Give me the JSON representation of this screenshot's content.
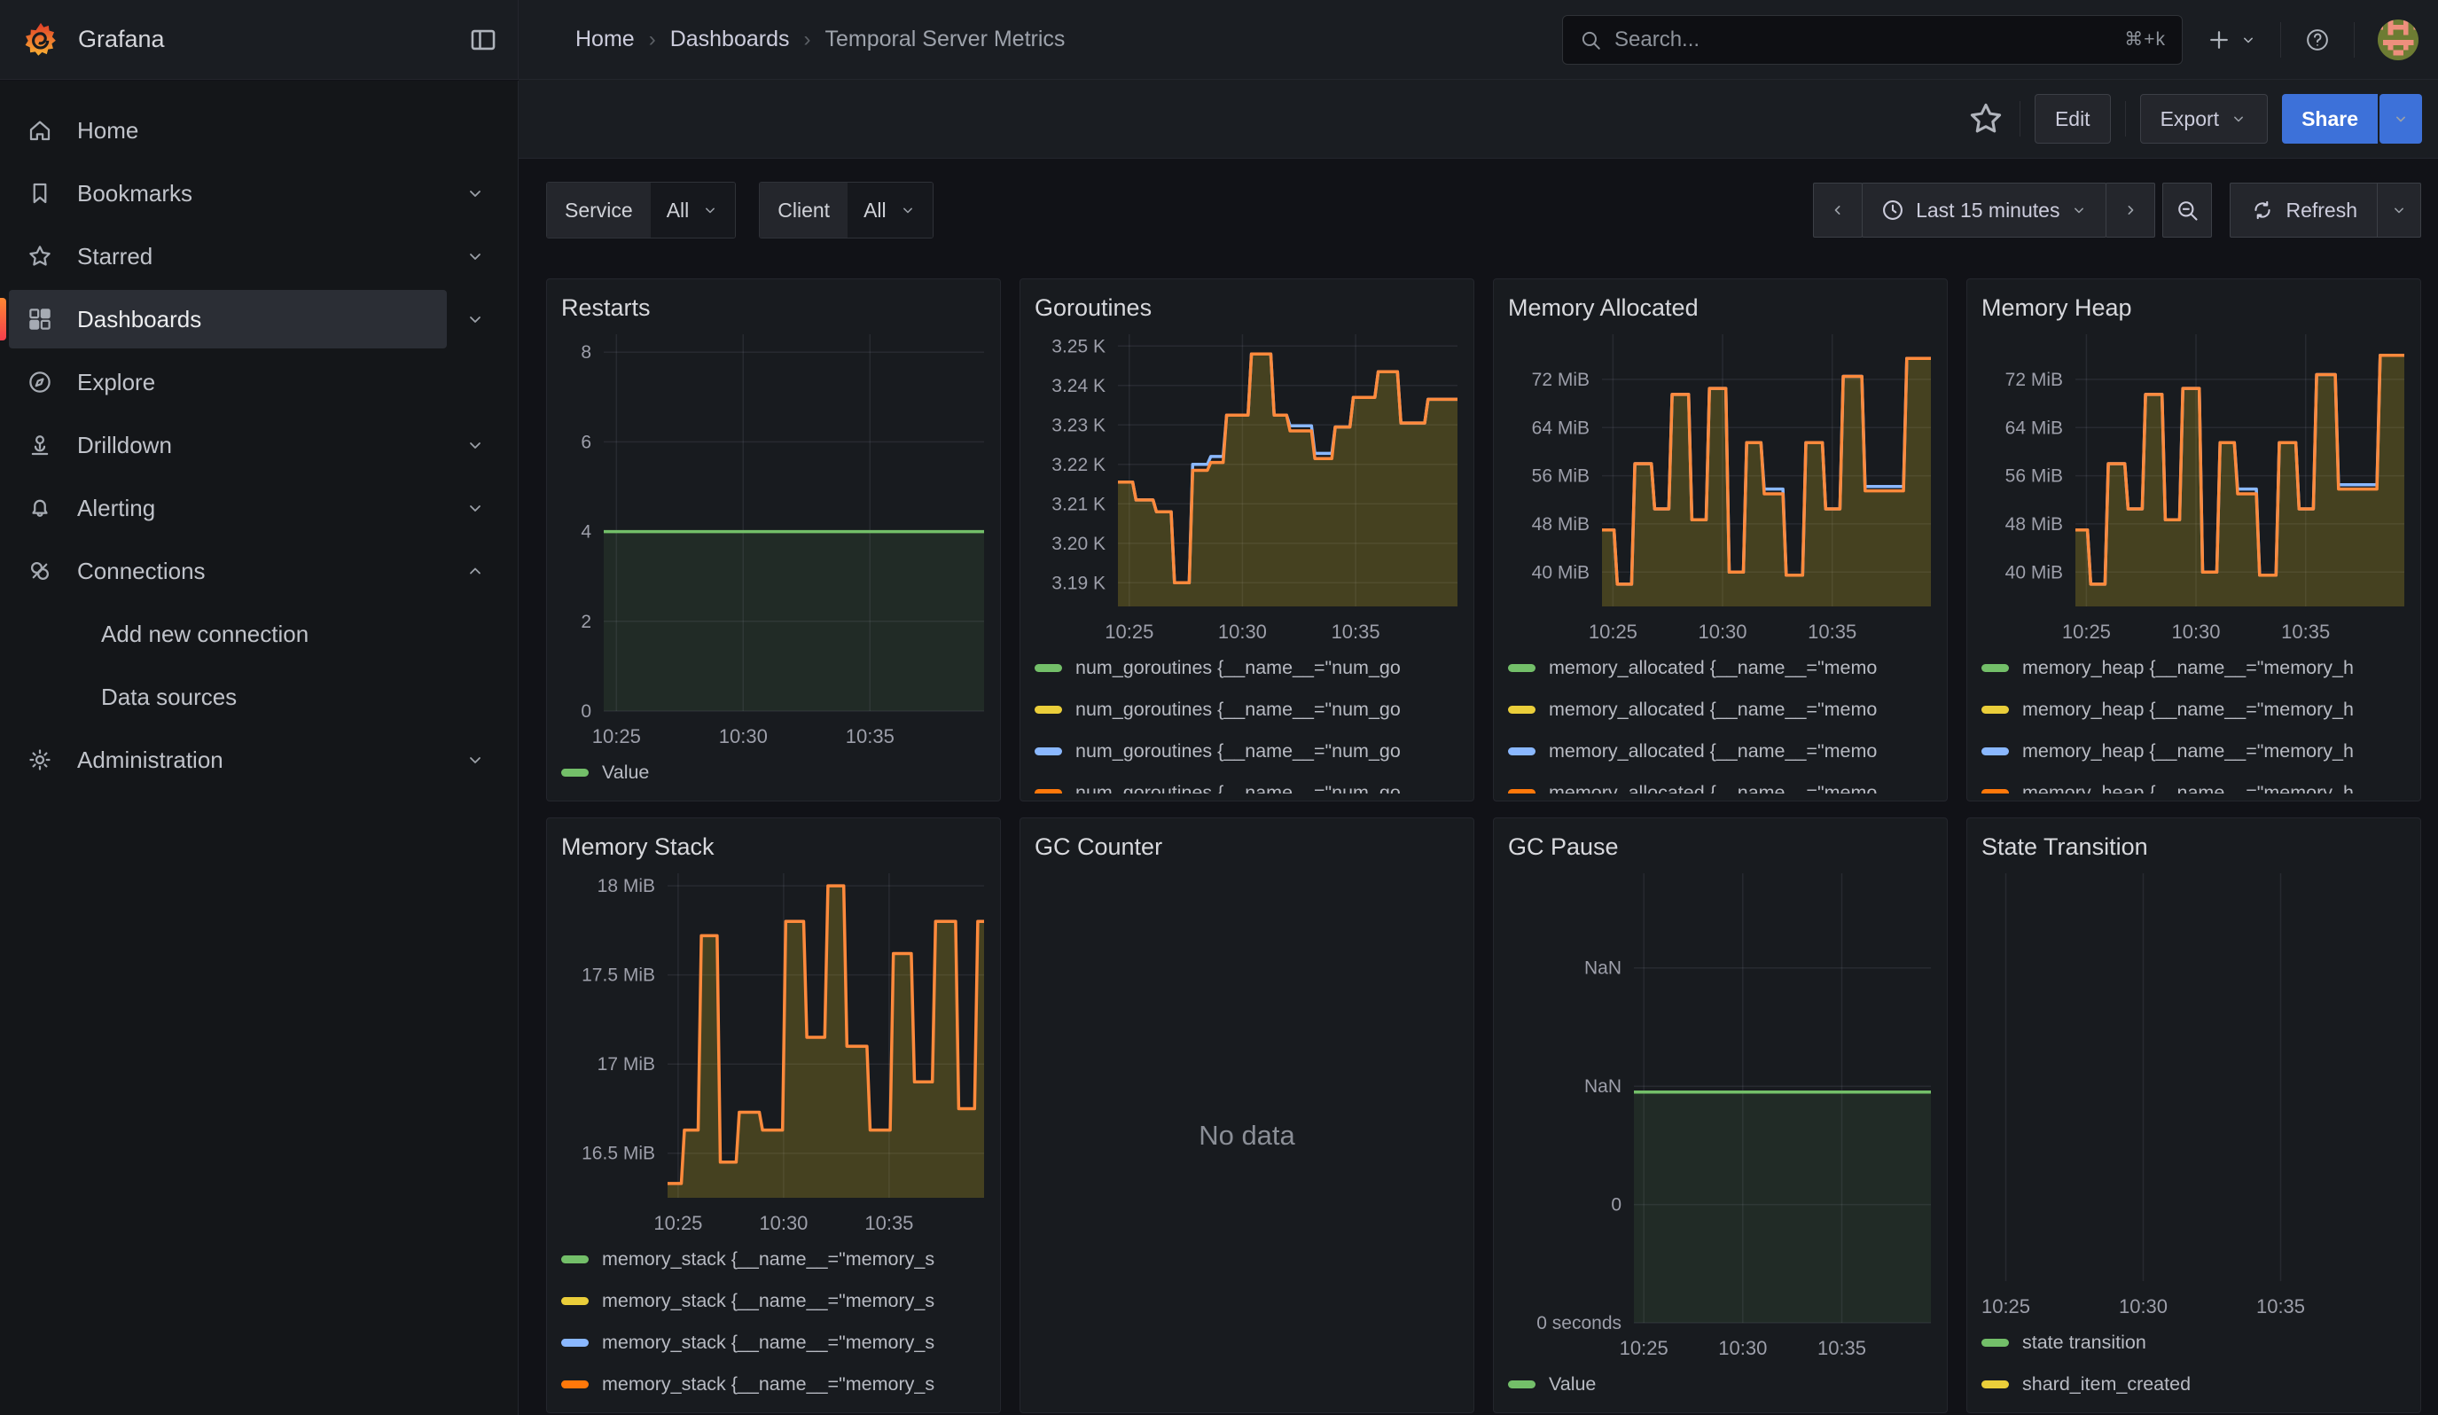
{
  "nav": {
    "brand": "Grafana",
    "breadcrumbs": [
      "Home",
      "Dashboards",
      "Temporal Server Metrics"
    ],
    "search": {
      "placeholder": "Search...",
      "shortcut": "⌘+k"
    }
  },
  "toolbar": {
    "edit_label": "Edit",
    "export_label": "Export",
    "share_label": "Share"
  },
  "sidebar": {
    "items": [
      {
        "label": "Home",
        "icon": "home"
      },
      {
        "label": "Bookmarks",
        "icon": "bookmark",
        "chevron": "down"
      },
      {
        "label": "Starred",
        "icon": "star",
        "chevron": "down"
      },
      {
        "label": "Dashboards",
        "icon": "apps",
        "chevron": "down",
        "active": true
      },
      {
        "label": "Explore",
        "icon": "compass"
      },
      {
        "label": "Drilldown",
        "icon": "drilldown",
        "chevron": "down"
      },
      {
        "label": "Alerting",
        "icon": "bell",
        "chevron": "down"
      },
      {
        "label": "Connections",
        "icon": "plug",
        "chevron": "up"
      },
      {
        "label": "Add new connection",
        "indent": true
      },
      {
        "label": "Data sources",
        "indent": true
      },
      {
        "label": "Administration",
        "icon": "gear",
        "chevron": "down"
      }
    ]
  },
  "filters": [
    {
      "label": "Service",
      "value": "All"
    },
    {
      "label": "Client",
      "value": "All"
    }
  ],
  "timebar": {
    "range_label": "Last 15 minutes",
    "refresh_label": "Refresh"
  },
  "chart_data": [
    {
      "id": "restarts",
      "title": "Restarts",
      "type": "area",
      "x_range": [
        24.5,
        39.5
      ],
      "x_ticks": [
        {
          "v": 25,
          "label": "10:25"
        },
        {
          "v": 30,
          "label": "10:30"
        },
        {
          "v": 35,
          "label": "10:35"
        }
      ],
      "y_range": [
        0,
        8.4
      ],
      "y_ticks": [
        {
          "v": 0,
          "label": "0"
        },
        {
          "v": 2,
          "label": "2"
        },
        {
          "v": 4,
          "label": "4"
        },
        {
          "v": 6,
          "label": "6"
        },
        {
          "v": 8,
          "label": "8"
        }
      ],
      "shape": [
        [
          24.5,
          4
        ]
      ],
      "line_color": "#73bf69",
      "fill_color": "rgba(115,191,105,0.10)",
      "legend": [
        {
          "color": "#73bf69",
          "label": "Value"
        }
      ]
    },
    {
      "id": "goroutines",
      "title": "Goroutines",
      "type": "area",
      "x_range": [
        24.5,
        39.5
      ],
      "x_ticks": [
        {
          "v": 25,
          "label": "10:25"
        },
        {
          "v": 30,
          "label": "10:30"
        },
        {
          "v": 35,
          "label": "10:35"
        }
      ],
      "y_range": [
        3.184,
        3.253
      ],
      "y_ticks": [
        {
          "v": 3.19,
          "label": "3.19 K"
        },
        {
          "v": 3.2,
          "label": "3.20 K"
        },
        {
          "v": 3.21,
          "label": "3.21 K"
        },
        {
          "v": 3.22,
          "label": "3.22 K"
        },
        {
          "v": 3.23,
          "label": "3.23 K"
        },
        {
          "v": 3.24,
          "label": "3.24 K"
        },
        {
          "v": 3.25,
          "label": "3.25 K"
        }
      ],
      "shape": [
        [
          24.5,
          3.2155
        ],
        [
          25.3,
          3.211
        ],
        [
          26.2,
          3.208
        ],
        [
          27.0,
          3.19
        ],
        [
          27.8,
          3.2185
        ],
        [
          28.6,
          3.2205
        ],
        [
          29.3,
          3.2325
        ],
        [
          30.4,
          3.248
        ],
        [
          31.4,
          3.2325
        ],
        [
          32.1,
          3.2285
        ],
        [
          33.2,
          3.2215
        ],
        [
          34.1,
          3.2295
        ],
        [
          34.9,
          3.237
        ],
        [
          36.0,
          3.2435
        ],
        [
          37.0,
          3.2305
        ],
        [
          38.2,
          3.2365
        ]
      ],
      "blue_overrides": [
        [
          27.8,
          28.65,
          0.0015
        ],
        [
          32.1,
          34.1,
          0.0013
        ]
      ],
      "line_color": "#ff8a3c",
      "fill_color": "rgba(250,222,42,0.20)",
      "blue_color": "#8ab8ff",
      "legend": [
        {
          "color": "#73bf69",
          "label": "num_goroutines {__name__=\"num_go"
        },
        {
          "color": "#eace3a",
          "label": "num_goroutines {__name__=\"num_go"
        },
        {
          "color": "#8ab8ff",
          "label": "num_goroutines {__name__=\"num_go"
        },
        {
          "color": "#ff780a",
          "label": "num_goroutines {__name__=\"num_go"
        }
      ]
    },
    {
      "id": "memory_allocated",
      "title": "Memory Allocated",
      "type": "area",
      "x_range": [
        24.5,
        39.5
      ],
      "x_ticks": [
        {
          "v": 25,
          "label": "10:25"
        },
        {
          "v": 30,
          "label": "10:30"
        },
        {
          "v": 35,
          "label": "10:35"
        }
      ],
      "y_range": [
        34.3,
        79.5
      ],
      "y_ticks": [
        {
          "v": 40,
          "label": "40 MiB"
        },
        {
          "v": 48,
          "label": "48 MiB"
        },
        {
          "v": 56,
          "label": "56 MiB"
        },
        {
          "v": 64,
          "label": "64 MiB"
        },
        {
          "v": 72,
          "label": "72 MiB"
        }
      ],
      "shape": [
        [
          24.5,
          47
        ],
        [
          25.2,
          38
        ],
        [
          26.0,
          58
        ],
        [
          26.9,
          50.5
        ],
        [
          27.7,
          69.5
        ],
        [
          28.6,
          48.7
        ],
        [
          29.4,
          70.5
        ],
        [
          30.3,
          40
        ],
        [
          31.1,
          61.5
        ],
        [
          31.9,
          53
        ],
        [
          32.9,
          39.5
        ],
        [
          33.8,
          61.5
        ],
        [
          34.7,
          50.5
        ],
        [
          35.5,
          72.5
        ],
        [
          36.5,
          53.5
        ],
        [
          38.4,
          75.5
        ]
      ],
      "blue_overrides": [
        [
          31.9,
          32.9,
          0.8
        ],
        [
          36.5,
          38.4,
          0.7
        ]
      ],
      "line_color": "#ff8a3c",
      "fill_color": "rgba(250,222,42,0.20)",
      "blue_color": "#8ab8ff",
      "legend": [
        {
          "color": "#73bf69",
          "label": "memory_allocated {__name__=\"memo"
        },
        {
          "color": "#eace3a",
          "label": "memory_allocated {__name__=\"memo"
        },
        {
          "color": "#8ab8ff",
          "label": "memory_allocated {__name__=\"memo"
        },
        {
          "color": "#ff780a",
          "label": "memory_allocated {__name__=\"memo"
        }
      ]
    },
    {
      "id": "memory_heap",
      "title": "Memory Heap",
      "type": "area",
      "x_range": [
        24.5,
        39.5
      ],
      "x_ticks": [
        {
          "v": 25,
          "label": "10:25"
        },
        {
          "v": 30,
          "label": "10:30"
        },
        {
          "v": 35,
          "label": "10:35"
        }
      ],
      "y_range": [
        34.3,
        79.5
      ],
      "y_ticks": [
        {
          "v": 40,
          "label": "40 MiB"
        },
        {
          "v": 48,
          "label": "48 MiB"
        },
        {
          "v": 56,
          "label": "56 MiB"
        },
        {
          "v": 64,
          "label": "64 MiB"
        },
        {
          "v": 72,
          "label": "72 MiB"
        }
      ],
      "shape": [
        [
          24.5,
          47
        ],
        [
          25.2,
          38
        ],
        [
          26.0,
          58
        ],
        [
          26.9,
          50.5
        ],
        [
          27.7,
          69.5
        ],
        [
          28.6,
          48.7
        ],
        [
          29.4,
          70.5
        ],
        [
          30.3,
          40
        ],
        [
          31.1,
          61.5
        ],
        [
          31.9,
          53
        ],
        [
          32.9,
          39.5
        ],
        [
          33.8,
          61.5
        ],
        [
          34.7,
          50.5
        ],
        [
          35.5,
          72.8
        ],
        [
          36.5,
          53.8
        ],
        [
          38.4,
          76
        ]
      ],
      "blue_overrides": [
        [
          31.9,
          32.9,
          0.8
        ],
        [
          36.5,
          38.4,
          0.7
        ]
      ],
      "line_color": "#ff8a3c",
      "fill_color": "rgba(250,222,42,0.20)",
      "blue_color": "#8ab8ff",
      "legend": [
        {
          "color": "#73bf69",
          "label": "memory_heap {__name__=\"memory_h"
        },
        {
          "color": "#eace3a",
          "label": "memory_heap {__name__=\"memory_h"
        },
        {
          "color": "#8ab8ff",
          "label": "memory_heap {__name__=\"memory_h"
        },
        {
          "color": "#ff780a",
          "label": "memory_heap {__name__=\"memory_h"
        }
      ]
    },
    {
      "id": "memory_stack",
      "title": "Memory Stack",
      "type": "area",
      "x_range": [
        24.5,
        39.5
      ],
      "x_ticks": [
        {
          "v": 25,
          "label": "10:25"
        },
        {
          "v": 30,
          "label": "10:30"
        },
        {
          "v": 35,
          "label": "10:35"
        }
      ],
      "y_range": [
        16.25,
        18.07
      ],
      "y_ticks": [
        {
          "v": 16.5,
          "label": "16.5 MiB"
        },
        {
          "v": 17,
          "label": "17 MiB"
        },
        {
          "v": 17.5,
          "label": "17.5 MiB"
        },
        {
          "v": 18,
          "label": "18 MiB"
        }
      ],
      "shape": [
        [
          24.5,
          16.33
        ],
        [
          25.3,
          16.63
        ],
        [
          26.1,
          17.72
        ],
        [
          27.0,
          16.45
        ],
        [
          27.9,
          16.73
        ],
        [
          29.0,
          16.63
        ],
        [
          30.1,
          17.8
        ],
        [
          31.1,
          17.15
        ],
        [
          32.1,
          18.0
        ],
        [
          33.0,
          17.1
        ],
        [
          34.1,
          16.63
        ],
        [
          35.2,
          17.62
        ],
        [
          36.2,
          16.9
        ],
        [
          37.2,
          17.8
        ],
        [
          38.3,
          16.75
        ],
        [
          39.2,
          17.8
        ]
      ],
      "line_color": "#ff8a3c",
      "fill_color": "rgba(250,222,42,0.20)",
      "legend": [
        {
          "color": "#73bf69",
          "label": "memory_stack {__name__=\"memory_s"
        },
        {
          "color": "#eace3a",
          "label": "memory_stack {__name__=\"memory_s"
        },
        {
          "color": "#8ab8ff",
          "label": "memory_stack {__name__=\"memory_s"
        },
        {
          "color": "#ff780a",
          "label": "memory_stack {__name__=\"memory_s"
        }
      ]
    },
    {
      "id": "gc_counter",
      "title": "GC Counter",
      "type": "none",
      "no_data_text": "No data"
    },
    {
      "id": "gc_pause",
      "title": "GC Pause",
      "type": "area",
      "x_range": [
        24.5,
        39.5
      ],
      "x_ticks": [
        {
          "v": 25,
          "label": "10:25"
        },
        {
          "v": 30,
          "label": "10:30"
        },
        {
          "v": 35,
          "label": "10:35"
        }
      ],
      "y_range": [
        0,
        3.8
      ],
      "y_ticks": [
        {
          "v": 0,
          "label": "0 seconds"
        },
        {
          "v": 1,
          "label": "0"
        },
        {
          "v": 2,
          "label": "NaN"
        },
        {
          "v": 3,
          "label": "NaN"
        }
      ],
      "shape": [
        [
          24.5,
          1.95
        ]
      ],
      "line_color": "#73bf69",
      "fill_color": "rgba(115,191,105,0.10)",
      "legend": [
        {
          "color": "#73bf69",
          "label": "Value"
        }
      ]
    },
    {
      "id": "state_transition",
      "title": "State Transition",
      "type": "area",
      "x_range": [
        24.5,
        39.5
      ],
      "x_ticks": [
        {
          "v": 25,
          "label": "10:25"
        },
        {
          "v": 30,
          "label": "10:30"
        },
        {
          "v": 35,
          "label": "10:35"
        }
      ],
      "legend": [
        {
          "color": "#73bf69",
          "label": "state transition"
        },
        {
          "color": "#eace3a",
          "label": "shard_item_created"
        }
      ]
    }
  ]
}
